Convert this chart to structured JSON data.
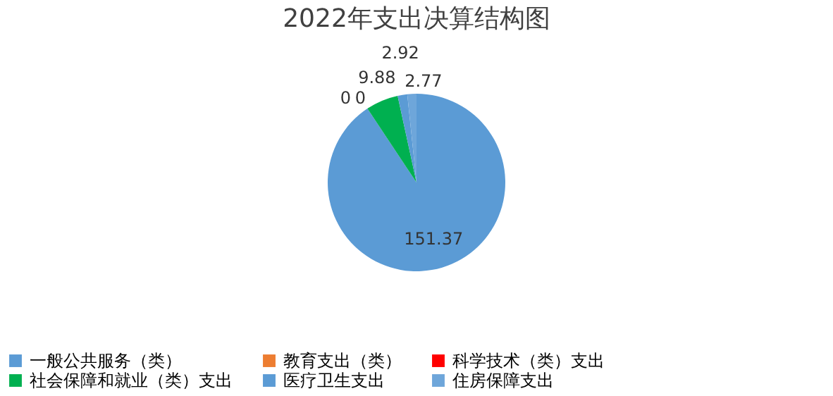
{
  "chart_data": {
    "type": "pie",
    "title": "2022年支出决算结构图",
    "categories": [
      "一般公共服务（类）",
      "教育支出（类）",
      "科学技术（类）支出",
      "社会保障和就业（类）支出",
      "医疗卫生支出",
      "住房保障支出"
    ],
    "values": [
      151.37,
      0,
      0,
      9.88,
      2.92,
      2.77
    ],
    "colors": [
      "#5b9bd5",
      "#ed7d31",
      "#ff0000",
      "#00b050",
      "#5b9bd5",
      "#6ea6da"
    ],
    "value_labels": [
      "151.37",
      "0",
      "0",
      "9.88",
      "2.92",
      "2.77"
    ],
    "legend": "bottom"
  }
}
